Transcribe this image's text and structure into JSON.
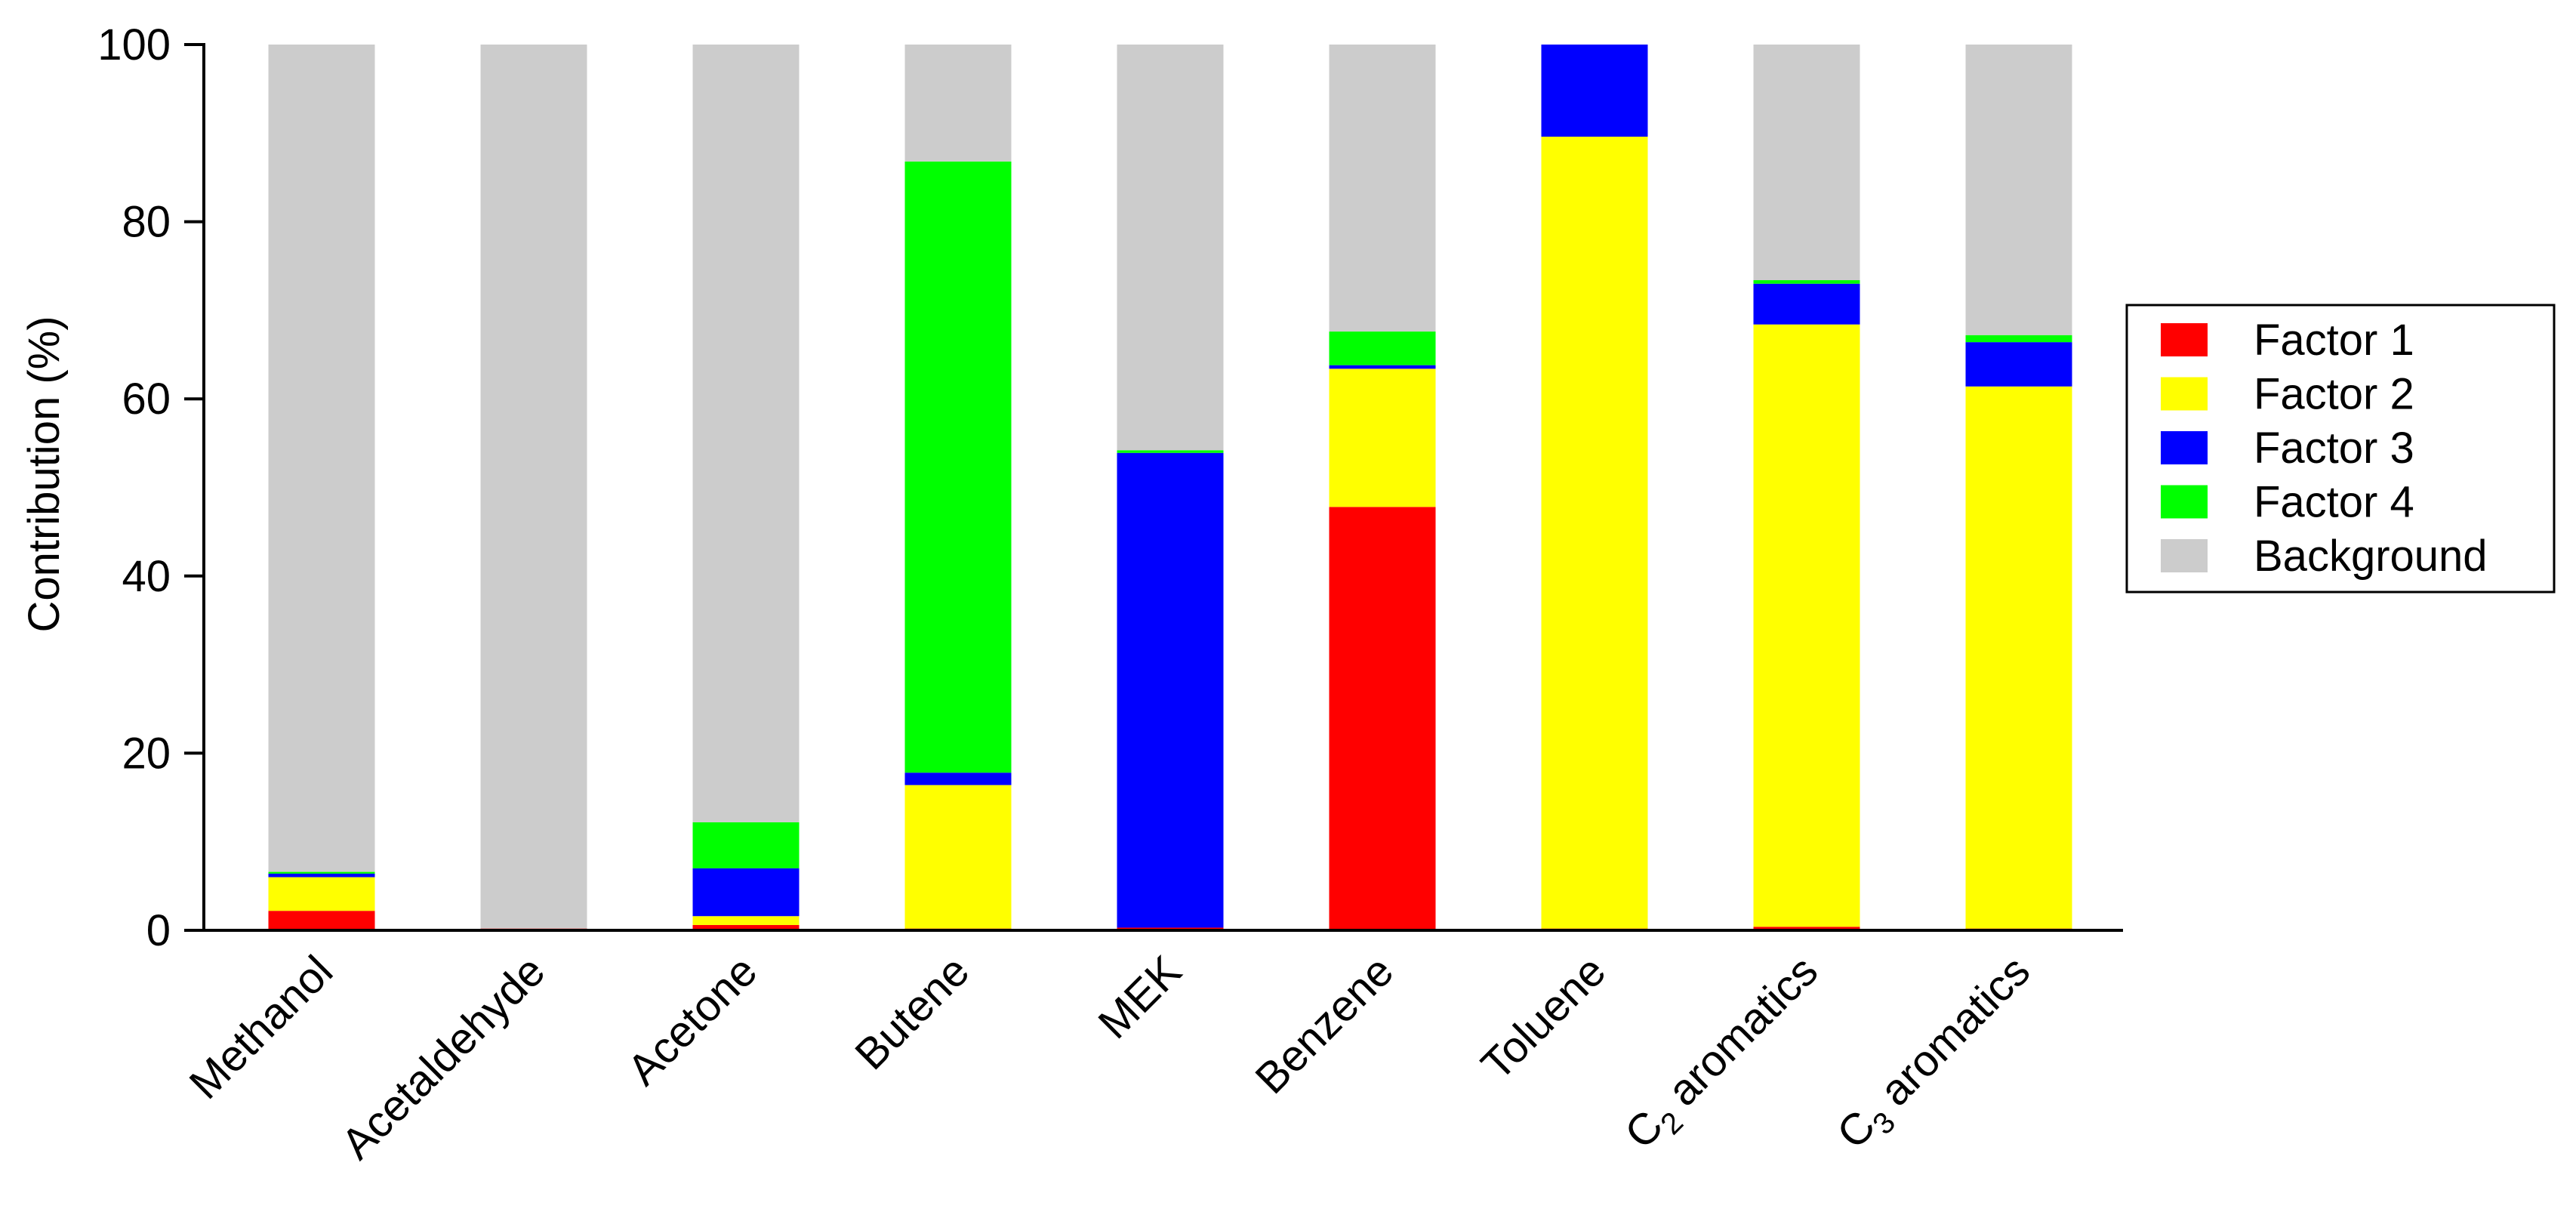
{
  "chart_data": {
    "type": "bar",
    "stacked": true,
    "ylabel": "Contribution (%)",
    "xlabel": "",
    "ylim": [
      0,
      100
    ],
    "yticks": [
      0,
      20,
      40,
      60,
      80,
      100
    ],
    "grid": false,
    "legend_position": "right",
    "categories": [
      {
        "label": "Methanol"
      },
      {
        "label": "Acetaldehyde"
      },
      {
        "label": "Acetone"
      },
      {
        "label": "Butene"
      },
      {
        "label": "MEK"
      },
      {
        "label": "Benzene"
      },
      {
        "label": "Toluene"
      },
      {
        "prefix": "C",
        "sub": "2",
        "suffix": " aromatics"
      },
      {
        "prefix": "C",
        "sub": "3",
        "suffix": " aromatics"
      }
    ],
    "series": [
      {
        "name": "Factor 1",
        "color": "#ff0000",
        "values": [
          2.2,
          0.2,
          0.6,
          0.2,
          0.3,
          47.8,
          0.2,
          0.4,
          0.2
        ]
      },
      {
        "name": "Factor 2",
        "color": "#ffff00",
        "values": [
          3.8,
          0.0,
          1.0,
          16.2,
          0.0,
          15.6,
          89.4,
          68.0,
          61.2
        ]
      },
      {
        "name": "Factor 3",
        "color": "#0000ff",
        "values": [
          0.4,
          0.0,
          5.4,
          1.4,
          53.6,
          0.4,
          10.4,
          4.6,
          5.0
        ]
      },
      {
        "name": "Factor 4",
        "color": "#00ff00",
        "values": [
          0.2,
          0.0,
          5.2,
          69.0,
          0.3,
          3.8,
          0.0,
          0.4,
          0.8
        ]
      },
      {
        "name": "Background",
        "color": "#cccccc",
        "values": [
          93.4,
          99.8,
          87.8,
          13.2,
          45.8,
          32.4,
          0.0,
          26.6,
          32.8
        ]
      }
    ]
  }
}
